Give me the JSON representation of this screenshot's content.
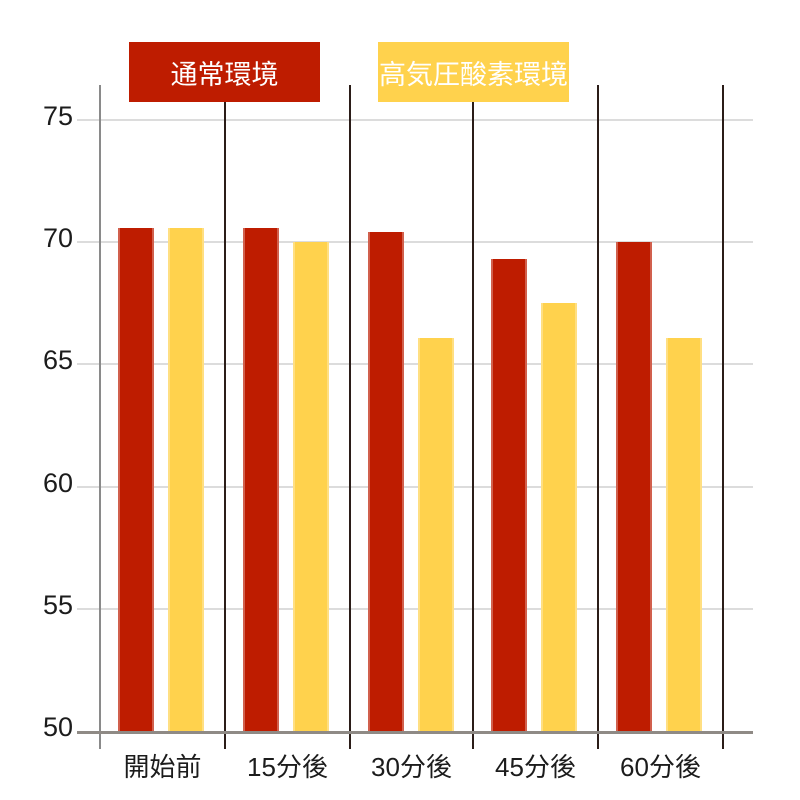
{
  "chart_data": {
    "type": "bar",
    "title": "",
    "categories": [
      "開始前",
      "15分後",
      "30分後",
      "45分後",
      "60分後"
    ],
    "series": [
      {
        "name": "通常環境",
        "color": "#be1c00",
        "values": [
          70.6,
          70.6,
          70.4,
          69.3,
          70.0
        ]
      },
      {
        "name": "高気圧酸素環境",
        "color": "#ffd24d",
        "values": [
          70.6,
          70.0,
          66.1,
          67.5,
          66.1
        ]
      }
    ],
    "xlabel": "",
    "ylabel": "",
    "ylim": [
      50,
      76.5
    ],
    "yticks": [
      75,
      70,
      65,
      60,
      55,
      50
    ],
    "grid": true,
    "legend_position": "top"
  },
  "colors": {
    "background": "#ffffff",
    "grid": "#dcdcdc",
    "y_axis": "#8a8a8a",
    "x_axis": "#8f8a85",
    "separator": "#2b1d18",
    "tick_text": "#1c1c1c",
    "legend_text": "#ffffff"
  }
}
